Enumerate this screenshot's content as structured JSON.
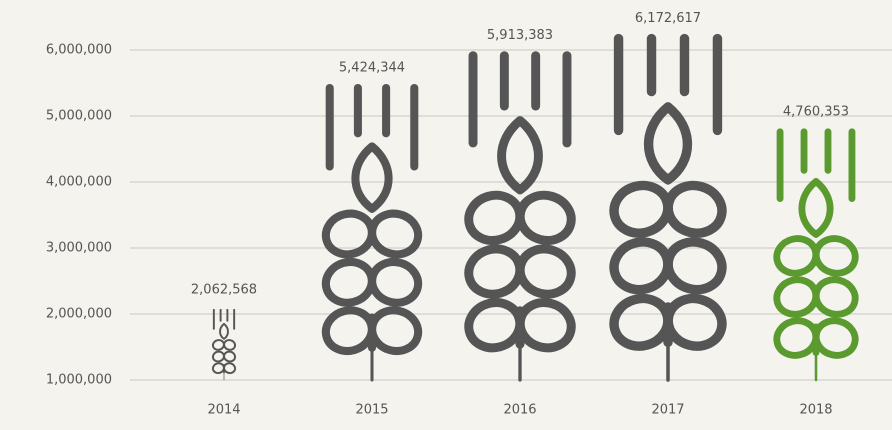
{
  "chart_data": {
    "type": "pictograph",
    "categories": [
      "2014",
      "2015",
      "2016",
      "2017",
      "2018"
    ],
    "values": [
      2062568,
      5424344,
      5913383,
      6172617,
      4760353
    ],
    "value_labels": [
      "2,062,568",
      "5,424,344",
      "5,913,383",
      "6,172,617",
      "4,760,353"
    ],
    "colors": [
      "#555555",
      "#555555",
      "#555555",
      "#555555",
      "#5a9a2e"
    ],
    "ylim": [
      1000000,
      6000000
    ],
    "yticks": [
      {
        "value": 1000000,
        "label": "1,000,000"
      },
      {
        "value": 2000000,
        "label": "2,000,000"
      },
      {
        "value": 3000000,
        "label": "3,000,000"
      },
      {
        "value": 4000000,
        "label": "4,000,000"
      },
      {
        "value": 5000000,
        "label": "5,000,000"
      },
      {
        "value": 6000000,
        "label": "6,000,000"
      }
    ],
    "grid": true
  }
}
